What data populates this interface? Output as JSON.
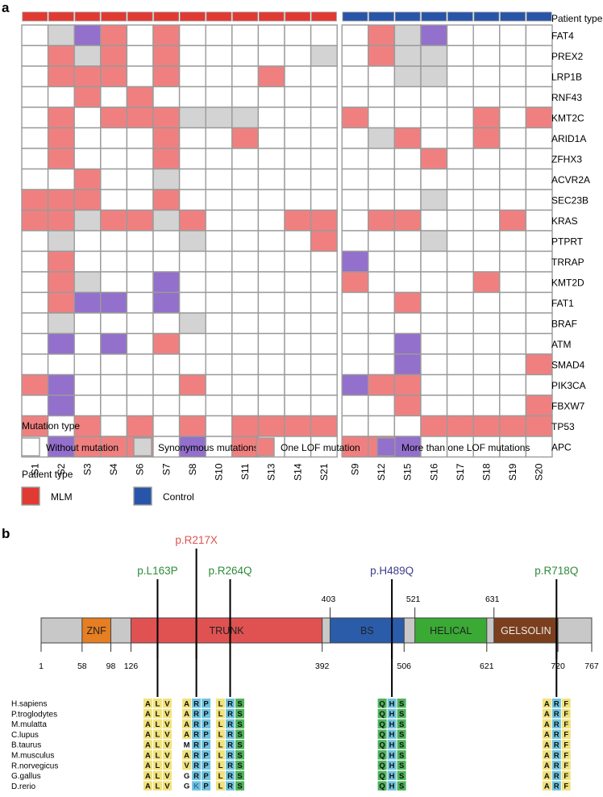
{
  "panel_a": {
    "panel_label": "a",
    "patient_type_header": "Patient type",
    "samples": [
      "S1",
      "S2",
      "S3",
      "S4",
      "S6",
      "S7",
      "S8",
      "S10",
      "S11",
      "S13",
      "S14",
      "S21",
      "S9",
      "S12",
      "S15",
      "S16",
      "S17",
      "S18",
      "S19",
      "S20"
    ],
    "sample_groups": [
      "MLM",
      "MLM",
      "MLM",
      "MLM",
      "MLM",
      "MLM",
      "MLM",
      "MLM",
      "MLM",
      "MLM",
      "MLM",
      "MLM",
      "Control",
      "Control",
      "Control",
      "Control",
      "Control",
      "Control",
      "Control",
      "Control"
    ],
    "genes": [
      "FAT4",
      "PREX2",
      "LRP1B",
      "RNF43",
      "KMT2C",
      "ARID1A",
      "ZFHX3",
      "ACVR2A",
      "SEC23B",
      "KRAS",
      "PTPRT",
      "TRRAP",
      "KMT2D",
      "FAT1",
      "BRAF",
      "ATM",
      "SMAD4",
      "PIK3CA",
      "FBXW7",
      "TP53",
      "APC"
    ],
    "matrix": [
      "01320200000002130000",
      "02120200000102110000",
      "02220200020000110000",
      "00202000000000000000",
      "02022211100020000202",
      "02000200200001200200",
      "02000200000000020000",
      "00200100000000000000",
      "22200200000000010000",
      "22122120002202200020",
      "01000010000200010000",
      "02000000000030000000",
      "02100300000020000200",
      "02330300000000200000",
      "01000010000000000000",
      "03030200000000300000",
      "00000000000000300002",
      "23000020000032200000",
      "03000000000000200002",
      "20202020222200022222",
      "03222030200022300000"
    ],
    "mutation_type_title": "Mutation type",
    "mutation_types": [
      "Without mutation",
      "Synonymous mutations",
      "One LOF mutation",
      "More than one LOF mutations"
    ],
    "mutation_colors": [
      "#ffffff",
      "#d3d3d3",
      "#f08080",
      "#9370cc"
    ],
    "patient_type_title": "Patient type",
    "patient_types": [
      "MLM",
      "Control"
    ],
    "patient_colors": [
      "#e03a32",
      "#2855a8"
    ]
  },
  "panel_b": {
    "panel_label": "b",
    "protein_length": 767,
    "domains": [
      {
        "name": "ZNF",
        "start": 58,
        "end": 98,
        "color": "#e67e22"
      },
      {
        "name": "TRUNK",
        "start": 126,
        "end": 392,
        "color": "#e05252"
      },
      {
        "name": "BS",
        "start": 403,
        "end": 506,
        "color": "#2a5caa"
      },
      {
        "name": "HELICAL",
        "start": 521,
        "end": 621,
        "color": "#3aaa35"
      },
      {
        "name": "GELSOLIN",
        "start": 631,
        "end": 720,
        "color": "#7b3f1e"
      }
    ],
    "bottom_ticks": [
      "1",
      "58",
      "98",
      "126",
      "392",
      "506",
      "621",
      "720",
      "767"
    ],
    "top_ticks": [
      "403",
      "521",
      "631"
    ],
    "mutations": [
      {
        "label": "p.L163P",
        "color": "#2e8b3a"
      },
      {
        "label": "p.R217X",
        "color": "#e05252"
      },
      {
        "label": "p.R264Q",
        "color": "#2e8b3a"
      },
      {
        "label": "p.H489Q",
        "color": "#3d3d8f"
      },
      {
        "label": "p.R718Q",
        "color": "#2e8b3a"
      }
    ],
    "species": [
      "H.sapiens",
      "P.troglodytes",
      "M.mulatta",
      "C.lupus",
      "B.taurus",
      "M.musculus",
      "R.norvegicus",
      "G.gallus",
      "D.rerio"
    ],
    "alignments": [
      [
        "ALV",
        "ARP",
        "LRS",
        "QHS",
        "ARF"
      ],
      [
        "ALV",
        "ARP",
        "LRS",
        "QHS",
        "ARF"
      ],
      [
        "ALV",
        "ARP",
        "LRS",
        "QHS",
        "ARF"
      ],
      [
        "ALV",
        "ARP",
        "LRS",
        "QHS",
        "ARF"
      ],
      [
        "ALV",
        "MRP",
        "LRS",
        "QHS",
        "ARF"
      ],
      [
        "ALV",
        "ARP",
        "LRS",
        "QHS",
        "ARF"
      ],
      [
        "ALV",
        "VRP",
        "LRS",
        "QHS",
        "ARF"
      ],
      [
        "ALV",
        "GRP",
        "LRS",
        "QHS",
        "ARF"
      ],
      [
        "ALV",
        "GKP",
        "LRS",
        "QHS",
        "ARF"
      ]
    ],
    "residue_colors": {
      "A": "#f2e27a",
      "L": "#f2e27a",
      "V": "#f2e27a",
      "F": "#f2e27a",
      "R": "#6fc3df",
      "K": "#6fc3df",
      "H": "#6fc3df",
      "P": "#6fc3df",
      "S": "#4fb35a",
      "Q": "#4fb35a",
      "M": "#ffffff",
      "G": "#ffffff"
    }
  }
}
